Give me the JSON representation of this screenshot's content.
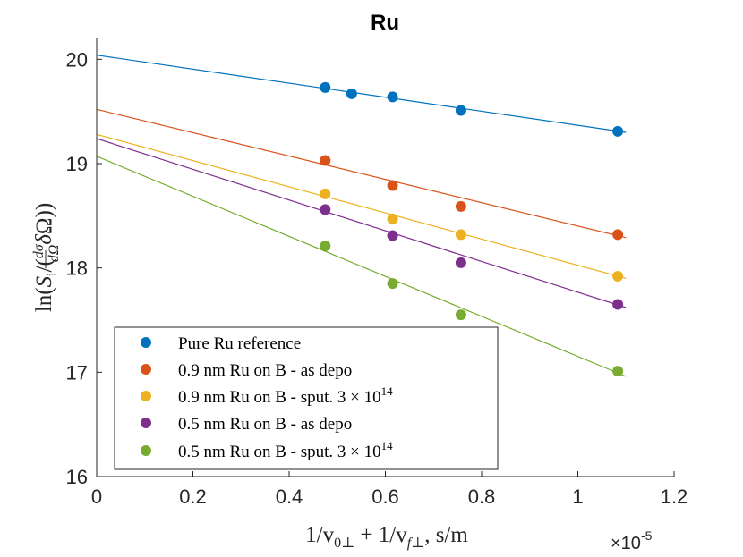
{
  "chart_data": {
    "type": "scatter",
    "title": "Ru",
    "xlabel": "1/v0⊥ + 1/vf⊥, s/m",
    "ylabel": "ln(Si/(dσ/dΩ δΩ))",
    "x_exponent_label": "×10",
    "x_exponent_value": "-5",
    "xlim": [
      0,
      1.2
    ],
    "ylim": [
      16,
      20.2
    ],
    "xticks": [
      "0",
      "0.2",
      "0.4",
      "0.6",
      "0.8",
      "1",
      "1.2"
    ],
    "yticks": [
      "16",
      "17",
      "18",
      "19",
      "20"
    ],
    "xtick_values": [
      0,
      0.2,
      0.4,
      0.6,
      0.8,
      1.0,
      1.2
    ],
    "ytick_values": [
      16,
      17,
      18,
      19,
      20
    ],
    "fit_x_range": [
      0,
      1.1
    ],
    "legend_position": "bottom-left",
    "series": [
      {
        "name": "Pure Ru reference",
        "color": "#0072BD",
        "points": [
          [
            0.475,
            19.73
          ],
          [
            0.53,
            19.67
          ],
          [
            0.615,
            19.64
          ],
          [
            0.757,
            19.51
          ],
          [
            1.083,
            19.31
          ]
        ],
        "fit": [
          20.04,
          19.3
        ]
      },
      {
        "name": "0.9 nm Ru on B - as depo",
        "color": "#D95319",
        "points": [
          [
            0.475,
            19.03
          ],
          [
            0.615,
            18.79
          ],
          [
            0.757,
            18.59
          ],
          [
            1.083,
            18.32
          ]
        ],
        "fit": [
          19.52,
          18.29
        ]
      },
      {
        "name": "0.9 nm Ru on B - sput. 3 × 10",
        "superscript": "14",
        "color": "#EDB120",
        "points": [
          [
            0.475,
            18.71
          ],
          [
            0.615,
            18.47
          ],
          [
            0.757,
            18.32
          ],
          [
            1.083,
            17.92
          ]
        ],
        "fit": [
          19.28,
          17.9
        ]
      },
      {
        "name": "0.5 nm Ru on B - as depo",
        "color": "#7E2F8E",
        "points": [
          [
            0.475,
            18.56
          ],
          [
            0.615,
            18.31
          ],
          [
            0.757,
            18.05
          ],
          [
            1.083,
            17.65
          ]
        ],
        "fit": [
          19.24,
          17.62
        ]
      },
      {
        "name": "0.5 nm Ru on B - sput. 3 × 10",
        "superscript": "14",
        "color": "#77AC30",
        "points": [
          [
            0.475,
            18.21
          ],
          [
            0.615,
            17.85
          ],
          [
            0.757,
            17.55
          ],
          [
            1.083,
            17.01
          ]
        ],
        "fit": [
          19.07,
          16.96
        ]
      }
    ]
  }
}
